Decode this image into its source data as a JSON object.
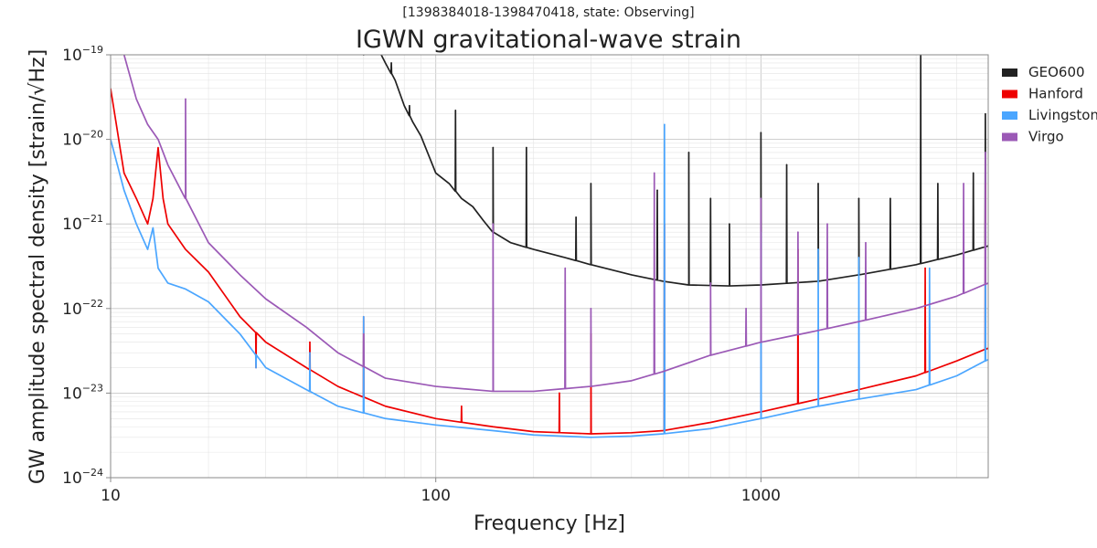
{
  "chart_data": {
    "type": "line",
    "subtitle": "[1398384018-1398470418, state: Observing]",
    "title": "IGWN gravitational-wave strain",
    "xlabel": "Frequency [Hz]",
    "ylabel": "GW amplitude spectral density [strain/√Hz]",
    "xscale": "log",
    "yscale": "log",
    "xlim": [
      10,
      5000
    ],
    "ylim": [
      1e-24,
      1e-19
    ],
    "grid": true,
    "legend_position": "top-right",
    "x_ticks": [
      {
        "value": 10,
        "label": "10"
      },
      {
        "value": 100,
        "label": "100"
      },
      {
        "value": 1000,
        "label": "1000"
      }
    ],
    "y_ticks": [
      {
        "value": 1e-24,
        "base": "10",
        "exp": "−24"
      },
      {
        "value": 1e-23,
        "base": "10",
        "exp": "−23"
      },
      {
        "value": 1e-22,
        "base": "10",
        "exp": "−22"
      },
      {
        "value": 1e-21,
        "base": "10",
        "exp": "−21"
      },
      {
        "value": 1e-20,
        "base": "10",
        "exp": "−20"
      },
      {
        "value": 1e-19,
        "base": "10",
        "exp": "−19"
      }
    ],
    "series": [
      {
        "name": "GEO600",
        "color": "#222222",
        "points": [
          [
            55,
            1.2e-19
          ],
          [
            60,
            1e-19
          ],
          [
            65,
            1.4e-19
          ],
          [
            70,
            8e-20
          ],
          [
            75,
            5e-20
          ],
          [
            80,
            2.5e-20
          ],
          [
            85,
            1.6e-20
          ],
          [
            90,
            1.1e-20
          ],
          [
            100,
            4e-21
          ],
          [
            110,
            3e-21
          ],
          [
            120,
            2e-21
          ],
          [
            130,
            1.6e-21
          ],
          [
            140,
            1.1e-21
          ],
          [
            150,
            8e-22
          ],
          [
            170,
            6e-22
          ],
          [
            200,
            5e-22
          ],
          [
            250,
            4e-22
          ],
          [
            300,
            3.3e-22
          ],
          [
            400,
            2.5e-22
          ],
          [
            500,
            2.1e-22
          ],
          [
            600,
            1.9e-22
          ],
          [
            800,
            1.85e-22
          ],
          [
            1000,
            1.9e-22
          ],
          [
            1500,
            2.1e-22
          ],
          [
            2000,
            2.5e-22
          ],
          [
            3000,
            3.3e-22
          ],
          [
            4000,
            4.3e-22
          ],
          [
            5000,
            5.5e-22
          ]
        ],
        "spikes": [
          [
            73,
            8e-20
          ],
          [
            83,
            2.5e-20
          ],
          [
            115,
            2.2e-20
          ],
          [
            150,
            8e-21
          ],
          [
            190,
            8e-21
          ],
          [
            270,
            1.2e-21
          ],
          [
            300,
            3e-21
          ],
          [
            480,
            2.5e-21
          ],
          [
            600,
            7e-21
          ],
          [
            700,
            2e-21
          ],
          [
            800,
            1e-21
          ],
          [
            1000,
            1.2e-20
          ],
          [
            1200,
            5e-21
          ],
          [
            1500,
            3e-21
          ],
          [
            2000,
            2e-21
          ],
          [
            2500,
            2e-21
          ],
          [
            3100,
            1e-19
          ],
          [
            3500,
            3e-21
          ],
          [
            4500,
            4e-21
          ],
          [
            4900,
            2e-20
          ]
        ]
      },
      {
        "name": "Hanford",
        "color": "#ee0000",
        "points": [
          [
            10,
            4e-20
          ],
          [
            11,
            4e-21
          ],
          [
            12,
            2e-21
          ],
          [
            13,
            1e-21
          ],
          [
            13.5,
            2e-21
          ],
          [
            14,
            8e-21
          ],
          [
            14.5,
            2e-21
          ],
          [
            15,
            1e-21
          ],
          [
            17,
            5e-22
          ],
          [
            20,
            2.7e-22
          ],
          [
            25,
            8e-23
          ],
          [
            30,
            4e-23
          ],
          [
            40,
            2e-23
          ],
          [
            50,
            1.2e-23
          ],
          [
            70,
            7e-24
          ],
          [
            100,
            5e-24
          ],
          [
            150,
            4e-24
          ],
          [
            200,
            3.5e-24
          ],
          [
            300,
            3.3e-24
          ],
          [
            400,
            3.4e-24
          ],
          [
            500,
            3.6e-24
          ],
          [
            700,
            4.5e-24
          ],
          [
            1000,
            6e-24
          ],
          [
            1500,
            8.5e-24
          ],
          [
            2000,
            1.1e-23
          ],
          [
            3000,
            1.6e-23
          ],
          [
            4000,
            2.4e-23
          ],
          [
            5000,
            3.4e-23
          ]
        ],
        "spikes": [
          [
            28,
            2e-23
          ],
          [
            41,
            4e-23
          ],
          [
            60,
            8e-23
          ],
          [
            120,
            7e-24
          ],
          [
            240,
            1e-23
          ],
          [
            300,
            5e-23
          ],
          [
            505,
            1e-21
          ],
          [
            1000,
            1e-22
          ],
          [
            1300,
            5e-22
          ],
          [
            3200,
            3e-22
          ],
          [
            4900,
            3e-21
          ]
        ]
      },
      {
        "name": "Livingston",
        "color": "#4ba6ff",
        "points": [
          [
            10,
            1e-20
          ],
          [
            11,
            2.5e-21
          ],
          [
            12,
            1e-21
          ],
          [
            13,
            5e-22
          ],
          [
            13.5,
            9e-22
          ],
          [
            14,
            3e-22
          ],
          [
            15,
            2e-22
          ],
          [
            17,
            1.7e-22
          ],
          [
            20,
            1.2e-22
          ],
          [
            25,
            5e-23
          ],
          [
            30,
            2e-23
          ],
          [
            40,
            1.1e-23
          ],
          [
            50,
            7e-24
          ],
          [
            70,
            5e-24
          ],
          [
            100,
            4.2e-24
          ],
          [
            150,
            3.6e-24
          ],
          [
            200,
            3.2e-24
          ],
          [
            300,
            3e-24
          ],
          [
            400,
            3.1e-24
          ],
          [
            500,
            3.3e-24
          ],
          [
            700,
            3.8e-24
          ],
          [
            1000,
            5e-24
          ],
          [
            1500,
            7e-24
          ],
          [
            2000,
            8.5e-24
          ],
          [
            3000,
            1.1e-23
          ],
          [
            4000,
            1.6e-23
          ],
          [
            5000,
            2.5e-23
          ]
        ],
        "spikes": [
          [
            28,
            2e-23
          ],
          [
            41,
            3e-23
          ],
          [
            60,
            8e-23
          ],
          [
            505,
            1.5e-20
          ],
          [
            1000,
            8e-22
          ],
          [
            1500,
            5e-22
          ],
          [
            2000,
            4e-22
          ],
          [
            3300,
            3e-22
          ],
          [
            4900,
            1e-21
          ]
        ]
      },
      {
        "name": "Virgo",
        "color": "#9b59b6",
        "points": [
          [
            11,
            1e-19
          ],
          [
            12,
            3e-20
          ],
          [
            13,
            1.5e-20
          ],
          [
            14,
            1e-20
          ],
          [
            15,
            5e-21
          ],
          [
            17,
            2e-21
          ],
          [
            20,
            6e-22
          ],
          [
            25,
            2.5e-22
          ],
          [
            30,
            1.3e-22
          ],
          [
            40,
            6e-23
          ],
          [
            50,
            3e-23
          ],
          [
            70,
            1.5e-23
          ],
          [
            100,
            1.2e-23
          ],
          [
            150,
            1.05e-23
          ],
          [
            200,
            1.05e-23
          ],
          [
            300,
            1.2e-23
          ],
          [
            400,
            1.4e-23
          ],
          [
            500,
            1.8e-23
          ],
          [
            700,
            2.8e-23
          ],
          [
            1000,
            4e-23
          ],
          [
            1500,
            5.5e-23
          ],
          [
            2000,
            7e-23
          ],
          [
            3000,
            1e-22
          ],
          [
            4000,
            1.4e-22
          ],
          [
            5000,
            2e-22
          ]
        ],
        "spikes": [
          [
            17,
            3e-20
          ],
          [
            60,
            5e-23
          ],
          [
            150,
            1e-21
          ],
          [
            250,
            3e-22
          ],
          [
            300,
            1e-22
          ],
          [
            470,
            4e-21
          ],
          [
            700,
            2e-22
          ],
          [
            900,
            1e-22
          ],
          [
            1000,
            2e-21
          ],
          [
            1300,
            8e-22
          ],
          [
            1600,
            1e-21
          ],
          [
            2100,
            6e-22
          ],
          [
            4200,
            3e-21
          ],
          [
            4900,
            7e-21
          ]
        ]
      }
    ]
  }
}
